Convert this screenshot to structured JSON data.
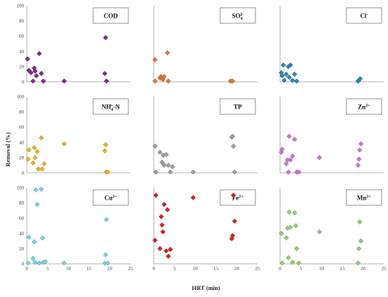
{
  "chart_data": {
    "type": "scatter",
    "layout": "3x3 panel grid",
    "xlabel": "HRT (min)",
    "ylabel": "Removal (%)",
    "xlim": [
      0,
      25
    ],
    "ylim": [
      0,
      100
    ],
    "xticks": [
      0,
      5,
      10,
      15,
      20,
      25
    ],
    "yticks": [
      0,
      20,
      40,
      60,
      80,
      100
    ],
    "grid": false,
    "panels": [
      {
        "label": "COD",
        "label_base": "COD",
        "label_sup": "",
        "label_suffix": "",
        "color": "#7b2d87",
        "points": [
          [
            0.2,
            30
          ],
          [
            0.5,
            15
          ],
          [
            1.0,
            12
          ],
          [
            1.5,
            1
          ],
          [
            1.8,
            18
          ],
          [
            2.0,
            14
          ],
          [
            2.3,
            8
          ],
          [
            3.0,
            37
          ],
          [
            3.5,
            11
          ],
          [
            4.0,
            1
          ],
          [
            9.0,
            1
          ],
          [
            18.8,
            11
          ],
          [
            19.0,
            58
          ],
          [
            19.2,
            1
          ]
        ]
      },
      {
        "label": "SO42-",
        "label_base": "SO",
        "label_sup": "2-",
        "label_sub": "4",
        "label_suffix": "",
        "color": "#d07c42",
        "points": [
          [
            0.3,
            1
          ],
          [
            0.3,
            29
          ],
          [
            1.5,
            5
          ],
          [
            1.7,
            7
          ],
          [
            2.0,
            5
          ],
          [
            2.2,
            3
          ],
          [
            2.5,
            7
          ],
          [
            3.3,
            38
          ],
          [
            3.5,
            1
          ],
          [
            18.5,
            1
          ],
          [
            19.0,
            1
          ]
        ]
      },
      {
        "label": "Cl-",
        "label_base": "Cl",
        "label_sup": "-",
        "label_suffix": "",
        "color": "#2e86b0",
        "points": [
          [
            0.3,
            12
          ],
          [
            0.5,
            8
          ],
          [
            0.8,
            22
          ],
          [
            1.0,
            2
          ],
          [
            1.5,
            10
          ],
          [
            2.0,
            20
          ],
          [
            2.2,
            6
          ],
          [
            2.5,
            22
          ],
          [
            3.0,
            2
          ],
          [
            3.5,
            10
          ],
          [
            4.0,
            1
          ],
          [
            18.8,
            1
          ],
          [
            19.0,
            2
          ],
          [
            19.3,
            4
          ]
        ]
      },
      {
        "label": "NH4+-N",
        "label_base": "NH",
        "label_sup": "+",
        "label_sub": "4",
        "label_suffix": "-N",
        "color": "#e6b32e",
        "points": [
          [
            0.3,
            18
          ],
          [
            0.5,
            30
          ],
          [
            1.5,
            13
          ],
          [
            1.8,
            33
          ],
          [
            2.0,
            20
          ],
          [
            2.5,
            28
          ],
          [
            2.8,
            5
          ],
          [
            3.5,
            46
          ],
          [
            3.7,
            5
          ],
          [
            4.2,
            12
          ],
          [
            9.0,
            38
          ],
          [
            18.8,
            29
          ],
          [
            19.0,
            37
          ],
          [
            19.2,
            1
          ],
          [
            19.5,
            1
          ]
        ]
      },
      {
        "label": "TP",
        "label_base": "TP",
        "label_sup": "",
        "label_suffix": "",
        "color": "#9e9e9e",
        "points": [
          [
            0.3,
            35
          ],
          [
            0.5,
            1
          ],
          [
            1.5,
            27
          ],
          [
            2.0,
            14
          ],
          [
            2.3,
            23
          ],
          [
            2.5,
            10
          ],
          [
            3.0,
            24
          ],
          [
            3.5,
            10
          ],
          [
            4.0,
            1
          ],
          [
            4.5,
            8
          ],
          [
            9.5,
            1
          ],
          [
            18.8,
            47
          ],
          [
            19.0,
            48
          ],
          [
            19.2,
            35
          ],
          [
            19.5,
            1
          ]
        ]
      },
      {
        "label": "Zn2+",
        "label_base": "Zn",
        "label_sup": "2+",
        "label_suffix": "",
        "color": "#c47ac7",
        "points": [
          [
            0.3,
            27
          ],
          [
            0.5,
            31
          ],
          [
            1.5,
            12
          ],
          [
            1.8,
            17
          ],
          [
            2.0,
            1
          ],
          [
            2.2,
            48
          ],
          [
            2.5,
            17
          ],
          [
            3.0,
            22
          ],
          [
            3.5,
            44
          ],
          [
            4.0,
            1
          ],
          [
            4.5,
            1
          ],
          [
            9.5,
            20
          ],
          [
            18.8,
            10
          ],
          [
            19.0,
            18
          ],
          [
            19.2,
            30
          ],
          [
            19.5,
            38
          ]
        ]
      },
      {
        "label": "Cu2+",
        "label_base": "Cu",
        "label_sup": "2+",
        "label_suffix": "",
        "color": "#7fd0d8",
        "points": [
          [
            0.3,
            1
          ],
          [
            0.5,
            35
          ],
          [
            1.5,
            7
          ],
          [
            1.8,
            29
          ],
          [
            2.0,
            2
          ],
          [
            2.2,
            97
          ],
          [
            2.5,
            78
          ],
          [
            3.0,
            1
          ],
          [
            3.5,
            98
          ],
          [
            3.8,
            34
          ],
          [
            4.0,
            2
          ],
          [
            4.5,
            3
          ],
          [
            9.0,
            1
          ],
          [
            18.8,
            1
          ],
          [
            19.0,
            12
          ],
          [
            19.2,
            58
          ],
          [
            19.5,
            1
          ]
        ]
      },
      {
        "label": "Fe2+",
        "label_base": "Fe",
        "label_sup": "2+",
        "label_suffix": "",
        "color": "#c8282a",
        "points": [
          [
            0.3,
            31
          ],
          [
            0.5,
            90
          ],
          [
            1.5,
            20
          ],
          [
            1.8,
            62
          ],
          [
            2.0,
            51
          ],
          [
            2.2,
            42
          ],
          [
            2.5,
            78
          ],
          [
            3.0,
            17
          ],
          [
            3.3,
            71
          ],
          [
            3.5,
            10
          ],
          [
            4.0,
            19
          ],
          [
            9.5,
            87
          ],
          [
            18.8,
            33
          ],
          [
            19.0,
            37
          ],
          [
            19.2,
            90
          ],
          [
            19.5,
            56
          ]
        ]
      },
      {
        "label": "Mn2+",
        "label_base": "Mn",
        "label_sup": "2+",
        "label_suffix": "",
        "color": "#98c97a",
        "points": [
          [
            0.3,
            40
          ],
          [
            0.5,
            1
          ],
          [
            1.5,
            34
          ],
          [
            1.8,
            47
          ],
          [
            2.0,
            8
          ],
          [
            2.2,
            68
          ],
          [
            2.5,
            48
          ],
          [
            3.0,
            2
          ],
          [
            3.5,
            67
          ],
          [
            3.8,
            50
          ],
          [
            4.0,
            20
          ],
          [
            4.5,
            1
          ],
          [
            9.5,
            42
          ],
          [
            18.8,
            1
          ],
          [
            19.0,
            20
          ],
          [
            19.2,
            55
          ],
          [
            19.5,
            30
          ]
        ]
      }
    ]
  }
}
